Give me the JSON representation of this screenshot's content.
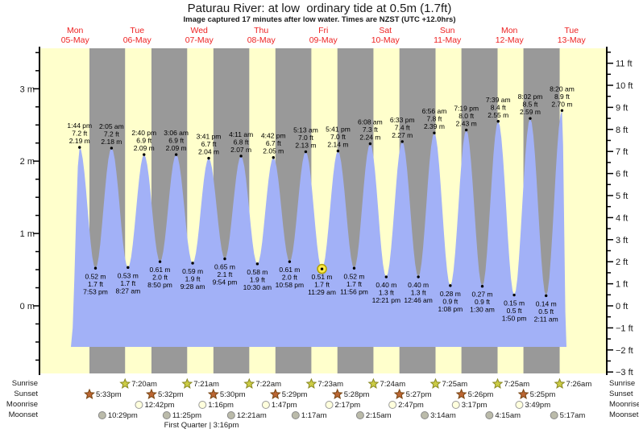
{
  "header": {
    "title": "Paturau River: at low  ordinary tide at 0.5m (1.7ft)",
    "subtitle": "Image captured 17 minutes after low water. Times are NZST (UTC +12.0hrs)"
  },
  "legend": {
    "sunrise": "Sunrise",
    "sunset": "Sunset",
    "moonrise": "Moonrise",
    "moonset": "Moonset",
    "first_quarter": "First Quarter | 3:16pm"
  },
  "colors": {
    "day_band": "#ffffcc",
    "night_band": "#999999",
    "tide_fill": "#a2b1f7",
    "day_label": "#ee2222",
    "axis": "#000000",
    "marker_fill": "#ffe94a",
    "marker_ring": "#b0a000",
    "sunrise_star": "#cccc44",
    "sunrise_star_edge": "#888822",
    "sunset_star": "#bb6633",
    "sunset_star_edge": "#774411",
    "moonrise_disc": "#ffffdd",
    "moonrise_edge": "#999999",
    "moonset_disc": "#bbbbaa",
    "moonset_edge": "#888888"
  },
  "chart_data": {
    "type": "area",
    "title": "Paturau River: at low  ordinary tide at 0.5m (1.7ft)",
    "subtitle": "Image captured 17 minutes after low water. Times are NZST (UTC +12.0hrs)",
    "ylabel_left_unit": "m",
    "ylabel_right_unit": "ft",
    "ylim_m": [
      -0.93,
      3.56
    ],
    "y_left_ticks": [
      {
        "v": 0,
        "label": "0 m"
      },
      {
        "v": 1,
        "label": "1 m"
      },
      {
        "v": 2,
        "label": "2 m"
      },
      {
        "v": 3,
        "label": "3 m"
      }
    ],
    "y_right_ticks": [
      {
        "v": -3,
        "label": "−3 ft"
      },
      {
        "v": -2,
        "label": "−2 ft"
      },
      {
        "v": -1,
        "label": "−1 ft"
      },
      {
        "v": 0,
        "label": "0 ft"
      },
      {
        "v": 1,
        "label": "1 ft"
      },
      {
        "v": 2,
        "label": "2 ft"
      },
      {
        "v": 3,
        "label": "3 ft"
      },
      {
        "v": 4,
        "label": "4 ft"
      },
      {
        "v": 5,
        "label": "5 ft"
      },
      {
        "v": 6,
        "label": "6 ft"
      },
      {
        "v": 7,
        "label": "7 ft"
      },
      {
        "v": 8,
        "label": "8 ft"
      },
      {
        "v": 9,
        "label": "9 ft"
      },
      {
        "v": 10,
        "label": "10 ft"
      },
      {
        "v": 11,
        "label": "11 ft"
      }
    ],
    "days": [
      {
        "dow": "Mon",
        "date": "05-May"
      },
      {
        "dow": "Tue",
        "date": "06-May"
      },
      {
        "dow": "Wed",
        "date": "07-May"
      },
      {
        "dow": "Thu",
        "date": "08-May"
      },
      {
        "dow": "Fri",
        "date": "09-May"
      },
      {
        "dow": "Sat",
        "date": "10-May"
      },
      {
        "dow": "Sun",
        "date": "11-May"
      },
      {
        "dow": "Mon",
        "date": "12-May"
      },
      {
        "dow": "Tue",
        "date": "13-May"
      }
    ],
    "baseline_m": -0.567,
    "tides": [
      {
        "day": 0,
        "time": "1:44 pm",
        "type": "high",
        "height_m": 2.19,
        "m": "2.19 m",
        "ft": "7.2 ft"
      },
      {
        "day": 0,
        "time": "7:53 pm",
        "type": "low",
        "height_m": 0.52,
        "m": "0.52 m",
        "ft": "1.7 ft"
      },
      {
        "day": 1,
        "time": "2:05 am",
        "type": "high",
        "height_m": 2.18,
        "m": "2.18 m",
        "ft": "7.2 ft"
      },
      {
        "day": 1,
        "time": "8:27 am",
        "type": "low",
        "height_m": 0.53,
        "m": "0.53 m",
        "ft": "1.7 ft"
      },
      {
        "day": 1,
        "time": "2:40 pm",
        "type": "high",
        "height_m": 2.09,
        "m": "2.09 m",
        "ft": "6.9 ft"
      },
      {
        "day": 1,
        "time": "8:50 pm",
        "type": "low",
        "height_m": 0.61,
        "m": "0.61 m",
        "ft": "2.0 ft"
      },
      {
        "day": 2,
        "time": "3:06 am",
        "type": "high",
        "height_m": 2.09,
        "m": "2.09 m",
        "ft": "6.9 ft"
      },
      {
        "day": 2,
        "time": "9:28 am",
        "type": "low",
        "height_m": 0.59,
        "m": "0.59 m",
        "ft": "1.9 ft"
      },
      {
        "day": 2,
        "time": "3:41 pm",
        "type": "high",
        "height_m": 2.04,
        "m": "2.04 m",
        "ft": "6.7 ft"
      },
      {
        "day": 2,
        "time": "9:54 pm",
        "type": "low",
        "height_m": 0.65,
        "m": "0.65 m",
        "ft": "2.1 ft"
      },
      {
        "day": 3,
        "time": "4:11 am",
        "type": "high",
        "height_m": 2.07,
        "m": "2.07 m",
        "ft": "6.8 ft"
      },
      {
        "day": 3,
        "time": "10:30 am",
        "type": "low",
        "height_m": 0.58,
        "m": "0.58 m",
        "ft": "1.9 ft"
      },
      {
        "day": 3,
        "time": "4:42 pm",
        "type": "high",
        "height_m": 2.05,
        "m": "2.05 m",
        "ft": "6.7 ft"
      },
      {
        "day": 3,
        "time": "10:58 pm",
        "type": "low",
        "height_m": 0.61,
        "m": "0.61 m",
        "ft": "2.0 ft"
      },
      {
        "day": 4,
        "time": "5:13 am",
        "type": "high",
        "height_m": 2.13,
        "m": "2.13 m",
        "ft": "7.0 ft"
      },
      {
        "day": 4,
        "time": "11:29 am",
        "type": "low",
        "height_m": 0.51,
        "m": "0.51 m",
        "ft": "1.7 ft"
      },
      {
        "day": 4,
        "time": "5:41 pm",
        "type": "high",
        "height_m": 2.14,
        "m": "2.14 m",
        "ft": "7.0 ft"
      },
      {
        "day": 4,
        "time": "11:56 pm",
        "type": "low",
        "height_m": 0.52,
        "m": "0.52 m",
        "ft": "1.7 ft"
      },
      {
        "day": 5,
        "time": "6:08 am",
        "type": "high",
        "height_m": 2.24,
        "m": "2.24 m",
        "ft": "7.3 ft"
      },
      {
        "day": 5,
        "time": "12:21 pm",
        "type": "low",
        "height_m": 0.4,
        "m": "0.40 m",
        "ft": "1.3 ft"
      },
      {
        "day": 5,
        "time": "6:33 pm",
        "type": "high",
        "height_m": 2.27,
        "m": "2.27 m",
        "ft": "7.4 ft"
      },
      {
        "day": 6,
        "time": "12:46 am",
        "type": "low",
        "height_m": 0.4,
        "m": "0.40 m",
        "ft": "1.3 ft"
      },
      {
        "day": 6,
        "time": "6:56 am",
        "type": "high",
        "height_m": 2.39,
        "m": "2.39 m",
        "ft": "7.8 ft"
      },
      {
        "day": 6,
        "time": "1:08 pm",
        "type": "low",
        "height_m": 0.28,
        "m": "0.28 m",
        "ft": "0.9 ft"
      },
      {
        "day": 6,
        "time": "7:19 pm",
        "type": "high",
        "height_m": 2.43,
        "m": "2.43 m",
        "ft": "8.0 ft"
      },
      {
        "day": 7,
        "time": "1:30 am",
        "type": "low",
        "height_m": 0.27,
        "m": "0.27 m",
        "ft": "0.9 ft"
      },
      {
        "day": 7,
        "time": "7:39 am",
        "type": "high",
        "height_m": 2.55,
        "m": "2.55 m",
        "ft": "8.4 ft"
      },
      {
        "day": 7,
        "time": "1:50 pm",
        "type": "low",
        "height_m": 0.15,
        "m": "0.15 m",
        "ft": "0.5 ft"
      },
      {
        "day": 7,
        "time": "8:02 pm",
        "type": "high",
        "height_m": 2.59,
        "m": "2.59 m",
        "ft": "8.5 ft"
      },
      {
        "day": 8,
        "time": "2:11 am",
        "type": "low",
        "height_m": 0.14,
        "m": "0.14 m",
        "ft": "0.5 ft"
      },
      {
        "day": 8,
        "time": "8:20 am",
        "type": "high",
        "height_m": 2.7,
        "m": "2.70 m",
        "ft": "8.9 ft"
      }
    ],
    "current_marker_index": 15,
    "sun": {
      "sunrise": [
        {
          "day": 1,
          "time": "7:20am"
        },
        {
          "day": 2,
          "time": "7:21am"
        },
        {
          "day": 3,
          "time": "7:22am"
        },
        {
          "day": 4,
          "time": "7:23am"
        },
        {
          "day": 5,
          "time": "7:24am"
        },
        {
          "day": 6,
          "time": "7:25am"
        },
        {
          "day": 7,
          "time": "7:25am"
        },
        {
          "day": 8,
          "time": "7:26am"
        }
      ],
      "sunset": [
        {
          "day": 0,
          "time": "5:33pm"
        },
        {
          "day": 1,
          "time": "5:32pm"
        },
        {
          "day": 2,
          "time": "5:30pm"
        },
        {
          "day": 3,
          "time": "5:29pm"
        },
        {
          "day": 4,
          "time": "5:28pm"
        },
        {
          "day": 5,
          "time": "5:27pm"
        },
        {
          "day": 6,
          "time": "5:26pm"
        },
        {
          "day": 7,
          "time": "5:25pm"
        }
      ]
    },
    "moon": {
      "moonrise": [
        {
          "day": 1,
          "time": "12:42pm"
        },
        {
          "day": 2,
          "time": "1:16pm"
        },
        {
          "day": 3,
          "time": "1:47pm"
        },
        {
          "day": 4,
          "time": "2:17pm"
        },
        {
          "day": 5,
          "time": "2:47pm"
        },
        {
          "day": 6,
          "time": "3:17pm"
        },
        {
          "day": 7,
          "time": "3:49pm"
        }
      ],
      "moonset": [
        {
          "day": 0,
          "time": "10:29pm"
        },
        {
          "day": 1,
          "time": "11:25pm"
        },
        {
          "day": 3,
          "time": "12:21am"
        },
        {
          "day": 4,
          "time": "1:17am"
        },
        {
          "day": 5,
          "time": "2:15am"
        },
        {
          "day": 6,
          "time": "3:14am"
        },
        {
          "day": 7,
          "time": "4:15am"
        },
        {
          "day": 8,
          "time": "5:17am"
        }
      ],
      "phase": {
        "name": "First Quarter",
        "time": "3:16pm",
        "day": 2
      }
    }
  }
}
